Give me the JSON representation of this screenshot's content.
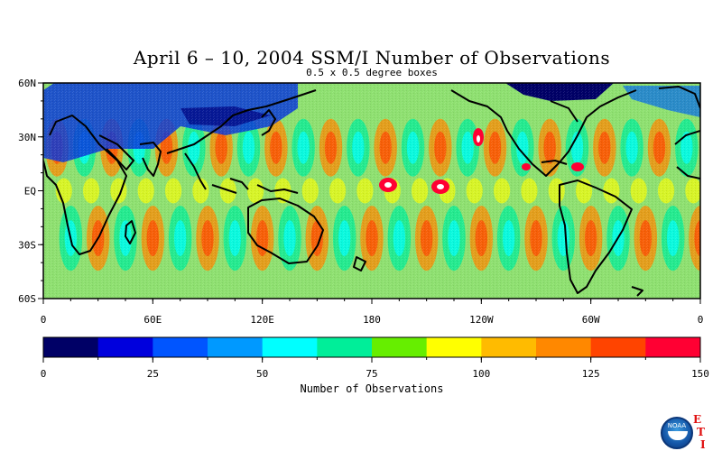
{
  "title": "April 6 – 10, 2004 SSM/I Number of Observations",
  "subtitle": "0.5 x 0.5 degree boxes",
  "lat_labels": [
    "60N",
    "30N",
    "EQ",
    "30S",
    "60S"
  ],
  "lon_labels": [
    "0",
    "60E",
    "120E",
    "180",
    "120W",
    "60W",
    "0"
  ],
  "colorbar": {
    "label": "Number of Observations",
    "tick_labels": [
      "0",
      "25",
      "50",
      "75",
      "100",
      "125",
      "150"
    ],
    "range": [
      0,
      150
    ],
    "colors": [
      "#000066",
      "#0000dd",
      "#0055ff",
      "#0099ff",
      "#00ffff",
      "#00ee99",
      "#66ee00",
      "#ffff00",
      "#ffbb00",
      "#ff8800",
      "#ff4400",
      "#ff0033"
    ]
  },
  "logo": {
    "noaa": "NOAA",
    "eti": [
      "E",
      "T",
      "I"
    ]
  }
}
